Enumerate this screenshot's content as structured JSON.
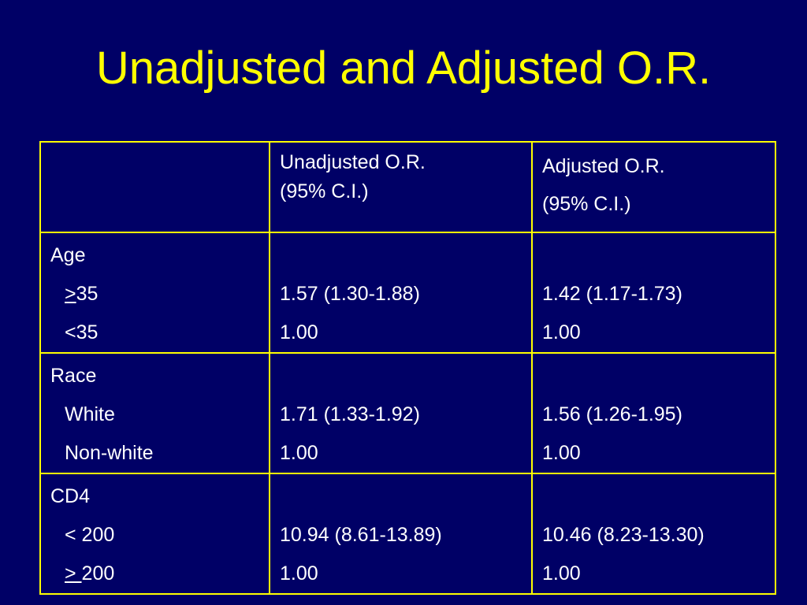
{
  "title": "Unadjusted and Adjusted O.R.",
  "table": {
    "headers": {
      "unadjusted_line1": "Unadjusted O.R.",
      "unadjusted_line2": "(95% C.I.)",
      "adjusted_line1": "Adjusted O.R.",
      "adjusted_line2": "(95% C.I.)"
    },
    "groups": [
      {
        "label": "Age",
        "rows": [
          {
            "prefix": ">",
            "value": "35",
            "unadjusted": "1.57 (1.30-1.88)",
            "adjusted": "1.42 (1.17-1.73)"
          },
          {
            "label": "<35",
            "unadjusted": "1.00",
            "adjusted": "1.00"
          }
        ]
      },
      {
        "label": "Race",
        "rows": [
          {
            "label": "White",
            "unadjusted": "1.71 (1.33-1.92)",
            "adjusted": "1.56 (1.26-1.95)"
          },
          {
            "label": "Non-white",
            "unadjusted": "1.00",
            "adjusted": "1.00"
          }
        ]
      },
      {
        "label": "CD4",
        "rows": [
          {
            "label": "< 200",
            "unadjusted": "10.94 (8.61-13.89)",
            "adjusted": "10.46 (8.23-13.30)"
          },
          {
            "prefix": "> ",
            "value": "200",
            "unadjusted": "1.00",
            "adjusted": "1.00"
          }
        ]
      }
    ]
  }
}
